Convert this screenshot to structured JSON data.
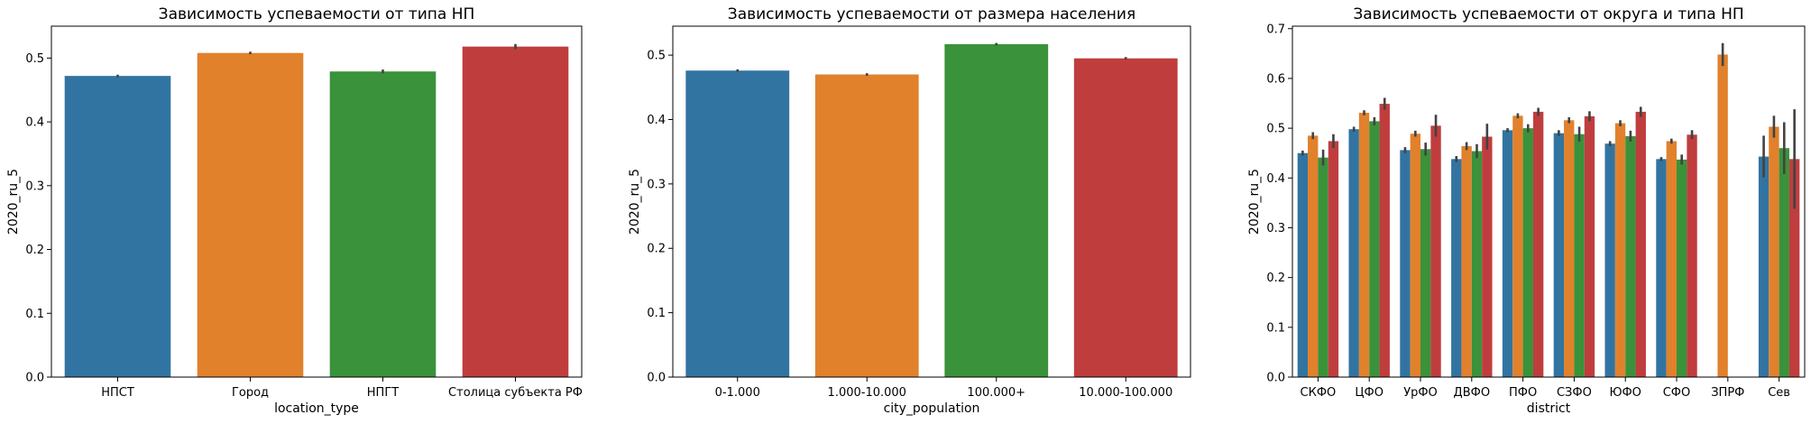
{
  "chart_data": [
    {
      "type": "bar",
      "title": "Зависимость успеваемости от типа НП",
      "xlabel": "location_type",
      "ylabel": "2020_ru_5",
      "ylim": [
        0,
        0.55
      ],
      "yticks": [
        "0.0",
        "0.1",
        "0.2",
        "0.3",
        "0.4",
        "0.5"
      ],
      "categories": [
        "НПСТ",
        "Город",
        "НПГТ",
        "Столица субъекта РФ"
      ],
      "values": [
        0.472,
        0.508,
        0.479,
        0.518
      ],
      "errors": [
        0.002,
        0.002,
        0.003,
        0.004
      ],
      "colors": [
        "#3274a1",
        "#e1812c",
        "#3a923a",
        "#c03d3e"
      ],
      "grid": false,
      "legend": "none"
    },
    {
      "type": "bar",
      "title": "Зависимость успеваемости от размера населения",
      "xlabel": "city_population",
      "ylabel": "2020_ru_5",
      "ylim": [
        0,
        0.545
      ],
      "yticks": [
        "0.0",
        "0.1",
        "0.2",
        "0.3",
        "0.4",
        "0.5"
      ],
      "categories": [
        "0-1.000",
        "1.000-10.000",
        "100.000+",
        "10.000-100.000"
      ],
      "values": [
        0.476,
        0.47,
        0.517,
        0.495
      ],
      "errors": [
        0.002,
        0.002,
        0.002,
        0.002
      ],
      "colors": [
        "#3274a1",
        "#e1812c",
        "#3a923a",
        "#c03d3e"
      ],
      "grid": false,
      "legend": "none"
    },
    {
      "type": "bar",
      "title": "Зависимость успеваемости от округа и типа НП",
      "xlabel": "district",
      "ylabel": "2020_ru_5",
      "ylim": [
        0,
        0.705
      ],
      "yticks": [
        "0.0",
        "0.1",
        "0.2",
        "0.3",
        "0.4",
        "0.5",
        "0.6",
        "0.7"
      ],
      "categories": [
        "СКФО",
        "ЦФО",
        "УрФО",
        "ДВФО",
        "ПФО",
        "СЗФО",
        "ЮФО",
        "СФО",
        "ЗПРФ",
        "Сев"
      ],
      "colors": [
        "#3274a1",
        "#e1812c",
        "#3a923a",
        "#c03d3e"
      ],
      "series": [
        {
          "values": [
            0.45,
            0.498,
            0.456,
            0.438,
            0.496,
            0.49,
            0.469,
            0.438,
            null,
            0.443
          ],
          "errors": [
            0.005,
            0.005,
            0.006,
            0.006,
            0.004,
            0.006,
            0.005,
            0.004,
            null,
            0.042
          ]
        },
        {
          "values": [
            0.485,
            0.531,
            0.489,
            0.464,
            0.525,
            0.516,
            0.51,
            0.474,
            0.648,
            0.503
          ],
          "errors": [
            0.007,
            0.005,
            0.006,
            0.008,
            0.005,
            0.006,
            0.006,
            0.005,
            0.023,
            0.022
          ]
        },
        {
          "values": [
            0.441,
            0.514,
            0.458,
            0.454,
            0.5,
            0.488,
            0.484,
            0.437,
            null,
            0.46
          ],
          "errors": [
            0.016,
            0.008,
            0.013,
            0.014,
            0.008,
            0.015,
            0.011,
            0.01,
            null,
            0.052
          ]
        },
        {
          "values": [
            0.474,
            0.549,
            0.505,
            0.483,
            0.533,
            0.524,
            0.533,
            0.487,
            null,
            0.438
          ],
          "errors": [
            0.014,
            0.012,
            0.022,
            0.026,
            0.008,
            0.01,
            0.01,
            0.009,
            null,
            0.1
          ]
        }
      ],
      "grid": false,
      "legend": "none"
    }
  ]
}
